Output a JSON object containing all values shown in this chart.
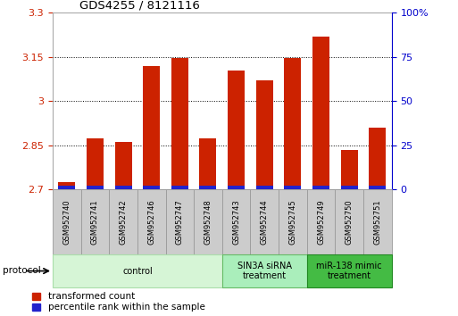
{
  "title": "GDS4255 / 8121116",
  "samples": [
    "GSM952740",
    "GSM952741",
    "GSM952742",
    "GSM952746",
    "GSM952747",
    "GSM952748",
    "GSM952743",
    "GSM952744",
    "GSM952745",
    "GSM952749",
    "GSM952750",
    "GSM952751"
  ],
  "transformed_count": [
    2.725,
    2.875,
    2.862,
    3.12,
    3.145,
    2.875,
    3.105,
    3.07,
    3.145,
    3.22,
    2.835,
    2.91
  ],
  "blue_percentile": [
    0.013,
    0.013,
    0.013,
    0.013,
    0.013,
    0.013,
    0.013,
    0.013,
    0.013,
    0.013,
    0.013,
    0.013
  ],
  "bar_color_red": "#cc2200",
  "bar_color_blue": "#2222cc",
  "ylim_min": 2.7,
  "ylim_max": 3.3,
  "yticks": [
    2.7,
    2.85,
    3.0,
    3.15,
    3.3
  ],
  "ytick_labels": [
    "2.7",
    "2.85",
    "3",
    "3.15",
    "3.3"
  ],
  "y2ticks": [
    0,
    25,
    50,
    75,
    100
  ],
  "y2labels": [
    "0",
    "25",
    "50",
    "75",
    "100%"
  ],
  "protocol_groups": [
    {
      "label": "control",
      "indices": [
        0,
        1,
        2,
        3,
        4,
        5
      ],
      "color": "#d6f5d6",
      "edge_color": "#aaddaa"
    },
    {
      "label": "SIN3A siRNA\ntreatment",
      "indices": [
        6,
        7,
        8
      ],
      "color": "#aaeebb",
      "edge_color": "#66bb66"
    },
    {
      "label": "miR-138 mimic\ntreatment",
      "indices": [
        9,
        10,
        11
      ],
      "color": "#44bb44",
      "edge_color": "#228822"
    }
  ],
  "bar_width": 0.6,
  "legend_red_label": "transformed count",
  "legend_blue_label": "percentile rank within the sample",
  "protocol_label": "protocol",
  "tick_color_left": "#cc2200",
  "tick_color_right": "#0000cc",
  "xticklabel_bg": "#cccccc",
  "xticklabel_edge": "#999999",
  "bg_color": "#ffffff"
}
